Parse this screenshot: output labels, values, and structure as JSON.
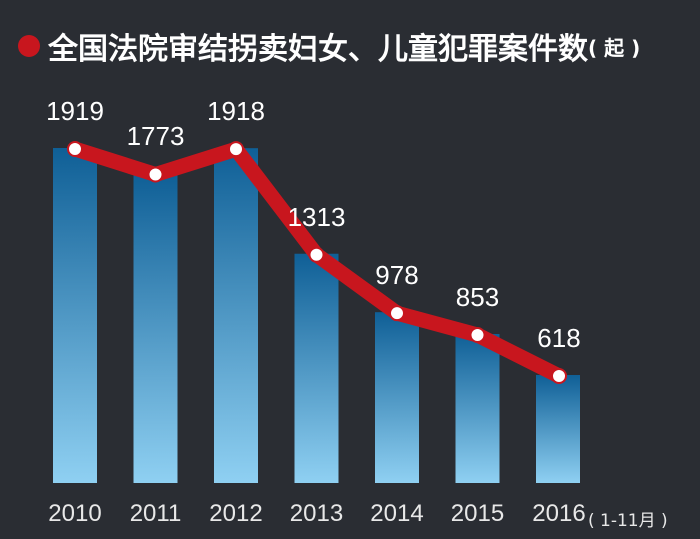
{
  "title": {
    "main": "全国法院审结拐卖妇女、儿童犯罪案件数",
    "unit": "( 起 )",
    "bullet_color": "#c8161e"
  },
  "x_note": "( 1-11月 )",
  "colors": {
    "background": "#2a2d33",
    "bar_top": "#0f5f96",
    "bar_bottom": "#8fd0f2",
    "line": "#c8161e",
    "marker": "#ffffff"
  },
  "chart_data": {
    "type": "bar",
    "title": "全国法院审结拐卖妇女、儿童犯罪案件数(起)",
    "xlabel": "",
    "ylabel": "起",
    "categories": [
      "2010",
      "2011",
      "2012",
      "2013",
      "2014",
      "2015",
      "2016"
    ],
    "category_note": "2016 (1-11月)",
    "series": [
      {
        "name": "案件数 (bar)",
        "type": "bar",
        "values": [
          1919,
          1773,
          1918,
          1313,
          978,
          853,
          618
        ]
      },
      {
        "name": "案件数 (line)",
        "type": "line",
        "values": [
          1919,
          1773,
          1918,
          1313,
          978,
          853,
          618
        ]
      }
    ],
    "data_labels": [
      "1919",
      "1773",
      "1918",
      "1313",
      "978",
      "853",
      "618"
    ],
    "grid": false,
    "legend": "none"
  }
}
